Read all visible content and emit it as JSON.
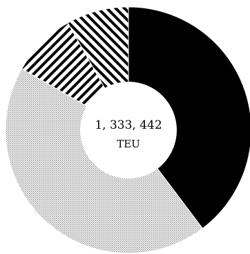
{
  "chart_data": {
    "type": "pie",
    "donut": true,
    "title": "",
    "center_label": {
      "value": "1, 333, 442",
      "unit": "TEU"
    },
    "slices": [
      {
        "value": 0.397,
        "fill": "solid",
        "color": "#000000"
      },
      {
        "value": 0.436,
        "fill": "dots",
        "color": "#9a9a9a"
      },
      {
        "value": 0.085,
        "fill": "hatch-down",
        "color": "#000000"
      },
      {
        "value": 0.082,
        "fill": "hatch-up",
        "color": "#000000"
      }
    ],
    "legend": "none"
  }
}
